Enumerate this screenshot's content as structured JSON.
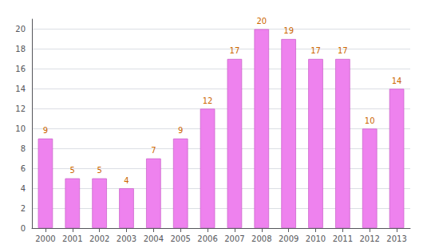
{
  "chart_data": {
    "type": "bar",
    "categories": [
      "2000",
      "2001",
      "2002",
      "2003",
      "2004",
      "2005",
      "2006",
      "2007",
      "2008",
      "2009",
      "2010",
      "2011",
      "2012",
      "2013"
    ],
    "values": [
      9,
      5,
      5,
      4,
      7,
      9,
      12,
      17,
      20,
      19,
      17,
      17,
      10,
      14
    ],
    "color": "#EE82EE",
    "ylim": [
      0,
      21
    ],
    "yticks": [
      0,
      2,
      4,
      6,
      8,
      10,
      12,
      14,
      16,
      18,
      20
    ],
    "grid": true,
    "data_labels": true
  }
}
